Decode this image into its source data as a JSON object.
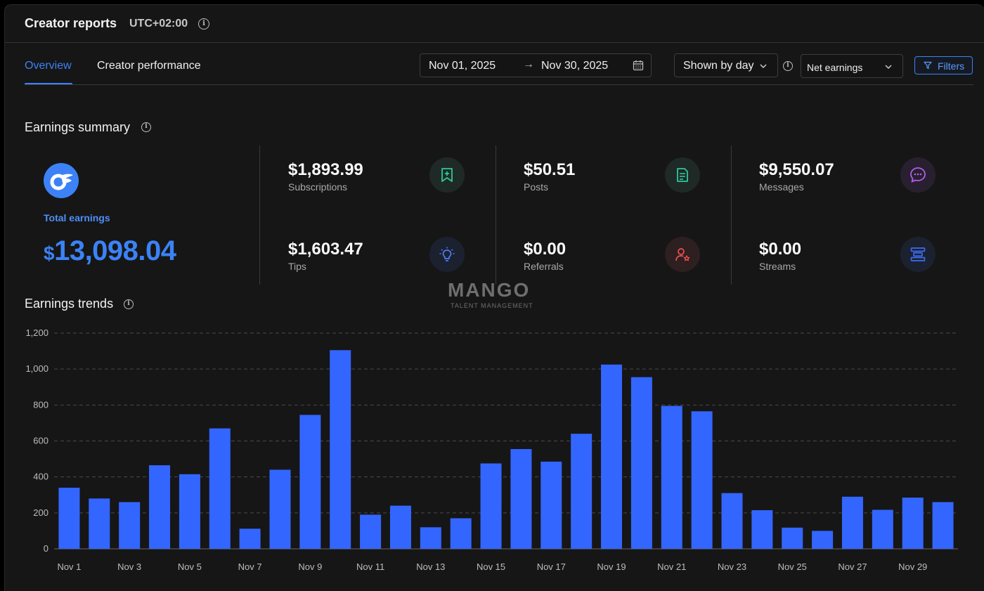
{
  "header": {
    "title": "Creator reports",
    "timezone": "UTC+02:00"
  },
  "tabs": [
    {
      "label": "Overview",
      "active": true
    },
    {
      "label": "Creator performance",
      "active": false
    }
  ],
  "toolbar": {
    "date_start": "Nov 01, 2025",
    "date_arrow": "→",
    "date_end": "Nov 30, 2025",
    "granularity": "Shown by day",
    "metric": "Net earnings",
    "filters_label": "Filters"
  },
  "summary": {
    "title": "Earnings summary",
    "total_label": "Total earnings",
    "total_currency": "$",
    "total_value": "13,098.04",
    "metrics": [
      {
        "value": "$1,893.99",
        "label": "Subscriptions",
        "icon": "bookmark-plus-icon",
        "color": "#2fc79a"
      },
      {
        "value": "$50.51",
        "label": "Posts",
        "icon": "document-icon",
        "color": "#2fc79a"
      },
      {
        "value": "$9,550.07",
        "label": "Messages",
        "icon": "chat-bubble-icon",
        "color": "#b45cf0"
      },
      {
        "value": "$1,603.47",
        "label": "Tips",
        "icon": "lightbulb-icon",
        "color": "#4d7ef7"
      },
      {
        "value": "$0.00",
        "label": "Referrals",
        "icon": "user-star-icon",
        "color": "#f0524f"
      },
      {
        "value": "$0.00",
        "label": "Streams",
        "icon": "stream-bars-icon",
        "color": "#3b6cf0"
      }
    ]
  },
  "watermark": {
    "title": "MANGO",
    "subtitle": "TALENT MANAGEMENT"
  },
  "trends": {
    "title": "Earnings trends"
  },
  "colors": {
    "accent": "#3b82f6",
    "bar": "#3366ff",
    "background": "#161616"
  },
  "chart_data": {
    "type": "bar",
    "title": "Earnings trends",
    "categories": [
      "Nov 1",
      "Nov 2",
      "Nov 3",
      "Nov 4",
      "Nov 5",
      "Nov 6",
      "Nov 7",
      "Nov 8",
      "Nov 9",
      "Nov 10",
      "Nov 11",
      "Nov 12",
      "Nov 13",
      "Nov 14",
      "Nov 15",
      "Nov 16",
      "Nov 17",
      "Nov 18",
      "Nov 19",
      "Nov 20",
      "Nov 21",
      "Nov 22",
      "Nov 23",
      "Nov 24",
      "Nov 25",
      "Nov 26",
      "Nov 27",
      "Nov 28",
      "Nov 29",
      "Nov 30"
    ],
    "tick_labels": [
      "Nov 1",
      "Nov 3",
      "Nov 5",
      "Nov 7",
      "Nov 9",
      "Nov 11",
      "Nov 13",
      "Nov 15",
      "Nov 17",
      "Nov 19",
      "Nov 21",
      "Nov 23",
      "Nov 25",
      "Nov 27",
      "Nov 29"
    ],
    "values": [
      340,
      280,
      260,
      465,
      415,
      670,
      112,
      440,
      745,
      1105,
      190,
      240,
      120,
      170,
      475,
      555,
      485,
      640,
      1025,
      955,
      795,
      765,
      310,
      215,
      118,
      100,
      290,
      217,
      285,
      260
    ],
    "yticks": [
      "0",
      "200",
      "400",
      "600",
      "800",
      "1,000",
      "1,200"
    ],
    "ylim": [
      0,
      1200
    ],
    "grid": true,
    "xlabel": "",
    "ylabel": ""
  }
}
